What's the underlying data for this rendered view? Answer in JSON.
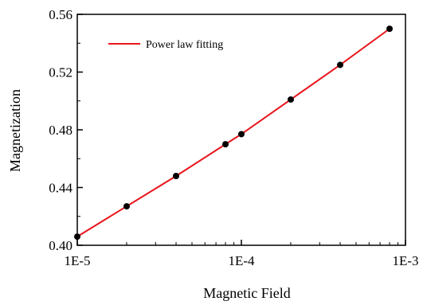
{
  "chart_data": {
    "type": "scatter",
    "title": "",
    "xlabel": "Magnetic Field",
    "ylabel": "Magnetization",
    "x_scale": "log",
    "xlim": [
      1e-05,
      0.001
    ],
    "ylim": [
      0.4,
      0.56
    ],
    "x_ticks": [
      1e-05,
      0.0001,
      0.001
    ],
    "x_tick_labels": [
      "1E-5",
      "1E-4",
      "1E-3"
    ],
    "y_ticks": [
      0.4,
      0.44,
      0.48,
      0.52,
      0.56
    ],
    "y_tick_labels": [
      "0.40",
      "0.44",
      "0.48",
      "0.52",
      "0.56"
    ],
    "grid": false,
    "legend": {
      "placement": "top-left",
      "entries": [
        "Power law fitting"
      ]
    },
    "series": [
      {
        "type": "scatter",
        "color": "#000000",
        "x": [
          1e-05,
          2e-05,
          4e-05,
          8e-05,
          0.0001,
          0.0002,
          0.0004,
          0.0008
        ],
        "y": [
          0.406,
          0.427,
          0.448,
          0.47,
          0.477,
          0.501,
          0.525,
          0.55
        ]
      },
      {
        "type": "line",
        "name": "Power law fitting",
        "color": "#e8141b",
        "x": [
          1e-05,
          2e-05,
          4e-05,
          8e-05,
          0.0001,
          0.0002,
          0.0004,
          0.0008
        ],
        "y": [
          0.406,
          0.427,
          0.448,
          0.47,
          0.477,
          0.501,
          0.525,
          0.55
        ]
      }
    ]
  }
}
